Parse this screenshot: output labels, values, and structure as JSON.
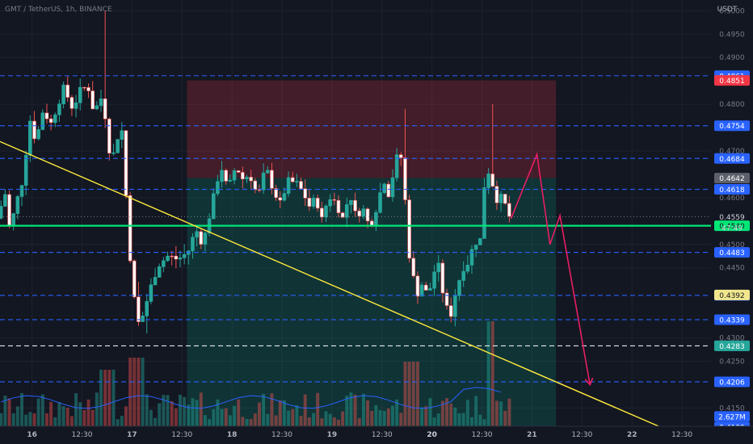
{
  "header": {
    "title": "GMT / TetherUS, 1h, BINANCE"
  },
  "price_axis": {
    "unit_label": "USDT",
    "labels": [
      "0.5000",
      "0.4950",
      "0.4900",
      "0.4800",
      "0.4700",
      "0.4600",
      "0.4500",
      "0.4450",
      "0.4300",
      "0.4250",
      "0.4150"
    ]
  },
  "time_axis": {
    "labels": [
      {
        "t": 16,
        "text": "16"
      },
      {
        "t": 16.5,
        "text": "12:30"
      },
      {
        "t": 17,
        "text": "17"
      },
      {
        "t": 17.5,
        "text": "12:30"
      },
      {
        "t": 18,
        "text": "18"
      },
      {
        "t": 18.5,
        "text": "12:30"
      },
      {
        "t": 19,
        "text": "19"
      },
      {
        "t": 19.5,
        "text": "12:30"
      },
      {
        "t": 20,
        "text": "20"
      },
      {
        "t": 20.5,
        "text": "12:30"
      },
      {
        "t": 21,
        "text": "21"
      },
      {
        "t": 21.5,
        "text": "12:30"
      },
      {
        "t": 22,
        "text": "22"
      },
      {
        "t": 22.5,
        "text": "12:30"
      }
    ]
  },
  "levels": [
    {
      "price": 0.4861,
      "text": "0.4861",
      "color": "#2962ff",
      "style": "dashed"
    },
    {
      "price": 0.4754,
      "text": "0.4754",
      "color": "#2962ff",
      "style": "dashed"
    },
    {
      "price": 0.4684,
      "text": "0.4684",
      "color": "#2962ff",
      "style": "dashed"
    },
    {
      "price": 0.4618,
      "text": "0.4618",
      "color": "#2962ff",
      "style": "dashed"
    },
    {
      "price": 0.4483,
      "text": "0.4483",
      "color": "#2962ff",
      "style": "dashed"
    },
    {
      "price": 0.4391,
      "text": "0.4391",
      "color": "#2962ff",
      "style": "dashed"
    },
    {
      "price": 0.4339,
      "text": "0.4339",
      "color": "#2962ff",
      "style": "dashed"
    },
    {
      "price": 0.4283,
      "text": "0.4283",
      "color": "#ffffff",
      "style": "dashed"
    },
    {
      "price": 0.4206,
      "text": "0.4206",
      "color": "#2962ff",
      "style": "dashed"
    },
    {
      "price": 0.4109,
      "text": "0.4109",
      "color": "#2962ff",
      "style": "dashed"
    }
  ],
  "marker_labels": [
    {
      "price": 0.4851,
      "text": "0.4851",
      "bg": "#f23645",
      "fg": "#ffffff"
    },
    {
      "price": 0.4642,
      "text": "0.4642",
      "bg": "#5d606b",
      "fg": "#ffffff"
    },
    {
      "price": 0.4559,
      "text": "0.4559",
      "bg": "#131722",
      "fg": "#d1d4dc"
    },
    {
      "price": 0.4392,
      "text": "0.4392",
      "bg": "#f0e68c",
      "fg": "#131722"
    },
    {
      "price": 0.4283,
      "text": "0.4283",
      "bg": "#26a69a",
      "fg": "#ffffff"
    }
  ],
  "countdown": {
    "price": 0.4535,
    "text": "47:49"
  },
  "support": {
    "price": 0.454,
    "text": "0.4540",
    "color": "#00e676"
  },
  "volume_label": {
    "price": 0.4132,
    "text": "2.627M",
    "bg": "#2962ff"
  },
  "colors": {
    "bull": "#26a69a",
    "bear": "#ef5350",
    "volume_ma": "#2962ff",
    "trendline": "#ffeb3b",
    "projection": "#e91e63"
  },
  "chart_data": {
    "type": "candlestick",
    "symbol": "GMT / TetherUS",
    "interval": "1h",
    "exchange": "BINANCE",
    "ylim": [
      0.4073,
      0.5023
    ],
    "xlim": [
      15.68,
      22.79
    ],
    "position_box": {
      "t_start": 17.55,
      "t_end": 21.24,
      "stop_top": 0.4851,
      "entry": 0.4642,
      "target": 0.4109
    },
    "trendline": {
      "t1": 15.68,
      "p1": 0.472,
      "t2": 22.58,
      "p2": 0.4082
    },
    "projection_path": [
      {
        "t": 20.79,
        "p": 0.4555
      },
      {
        "t": 21.05,
        "p": 0.4693
      },
      {
        "t": 21.18,
        "p": 0.45
      },
      {
        "t": 21.28,
        "p": 0.4562
      },
      {
        "t": 21.58,
        "p": 0.42
      }
    ],
    "anchors": [
      {
        "t": 15.69,
        "p": 0.4556
      },
      {
        "t": 15.78,
        "p": 0.4612
      },
      {
        "t": 15.82,
        "p": 0.4529
      },
      {
        "t": 15.88,
        "p": 0.4585
      },
      {
        "t": 15.95,
        "p": 0.464
      },
      {
        "t": 16.02,
        "p": 0.4768
      },
      {
        "t": 16.08,
        "p": 0.472
      },
      {
        "t": 16.16,
        "p": 0.4795
      },
      {
        "t": 16.22,
        "p": 0.4752
      },
      {
        "t": 16.3,
        "p": 0.48
      },
      {
        "t": 16.36,
        "p": 0.4835
      },
      {
        "t": 16.45,
        "p": 0.479
      },
      {
        "t": 16.52,
        "p": 0.4828
      },
      {
        "t": 16.6,
        "p": 0.484
      },
      {
        "t": 16.66,
        "p": 0.4783
      },
      {
        "t": 16.75,
        "p": 0.482
      },
      {
        "t": 16.81,
        "p": 0.4705
      },
      {
        "t": 16.87,
        "p": 0.469
      },
      {
        "t": 16.93,
        "p": 0.4776
      },
      {
        "t": 16.98,
        "p": 0.461
      },
      {
        "t": 17.04,
        "p": 0.442
      },
      {
        "t": 17.1,
        "p": 0.433
      },
      {
        "t": 17.15,
        "p": 0.4348
      },
      {
        "t": 17.22,
        "p": 0.4402
      },
      {
        "t": 17.3,
        "p": 0.4455
      },
      {
        "t": 17.4,
        "p": 0.4475
      },
      {
        "t": 17.5,
        "p": 0.4468
      },
      {
        "t": 17.6,
        "p": 0.4483
      },
      {
        "t": 17.68,
        "p": 0.4532
      },
      {
        "t": 17.75,
        "p": 0.45
      },
      {
        "t": 17.82,
        "p": 0.4565
      },
      {
        "t": 17.88,
        "p": 0.4623
      },
      {
        "t": 17.93,
        "p": 0.467
      },
      {
        "t": 18.0,
        "p": 0.4615
      },
      {
        "t": 18.08,
        "p": 0.4668
      },
      {
        "t": 18.15,
        "p": 0.464
      },
      {
        "t": 18.22,
        "p": 0.465
      },
      {
        "t": 18.3,
        "p": 0.46
      },
      {
        "t": 18.38,
        "p": 0.4665
      },
      {
        "t": 18.45,
        "p": 0.462
      },
      {
        "t": 18.52,
        "p": 0.4585
      },
      {
        "t": 18.6,
        "p": 0.4635
      },
      {
        "t": 18.68,
        "p": 0.4632
      },
      {
        "t": 18.75,
        "p": 0.4612
      },
      {
        "t": 18.82,
        "p": 0.458
      },
      {
        "t": 18.88,
        "p": 0.46
      },
      {
        "t": 18.95,
        "p": 0.4545
      },
      {
        "t": 19.0,
        "p": 0.4605
      },
      {
        "t": 19.08,
        "p": 0.459
      },
      {
        "t": 19.15,
        "p": 0.4555
      },
      {
        "t": 19.22,
        "p": 0.461
      },
      {
        "t": 19.28,
        "p": 0.456
      },
      {
        "t": 19.35,
        "p": 0.4578
      },
      {
        "t": 19.42,
        "p": 0.4535
      },
      {
        "t": 19.48,
        "p": 0.4575
      },
      {
        "t": 19.56,
        "p": 0.464
      },
      {
        "t": 19.62,
        "p": 0.46
      },
      {
        "t": 19.66,
        "p": 0.4665
      },
      {
        "t": 19.72,
        "p": 0.4705
      },
      {
        "t": 19.76,
        "p": 0.464
      },
      {
        "t": 19.8,
        "p": 0.45
      },
      {
        "t": 19.84,
        "p": 0.444
      },
      {
        "t": 19.9,
        "p": 0.4395
      },
      {
        "t": 19.96,
        "p": 0.4425
      },
      {
        "t": 20.0,
        "p": 0.4375
      },
      {
        "t": 20.04,
        "p": 0.443
      },
      {
        "t": 20.1,
        "p": 0.446
      },
      {
        "t": 20.16,
        "p": 0.4385
      },
      {
        "t": 20.22,
        "p": 0.434
      },
      {
        "t": 20.28,
        "p": 0.44
      },
      {
        "t": 20.35,
        "p": 0.445
      },
      {
        "t": 20.42,
        "p": 0.4465
      },
      {
        "t": 20.47,
        "p": 0.452
      },
      {
        "t": 20.51,
        "p": 0.447
      },
      {
        "t": 20.56,
        "p": 0.462
      },
      {
        "t": 20.6,
        "p": 0.466
      },
      {
        "t": 20.64,
        "p": 0.4635
      },
      {
        "t": 20.7,
        "p": 0.459
      },
      {
        "t": 20.75,
        "p": 0.4605
      },
      {
        "t": 20.8,
        "p": 0.456
      }
    ]
  }
}
